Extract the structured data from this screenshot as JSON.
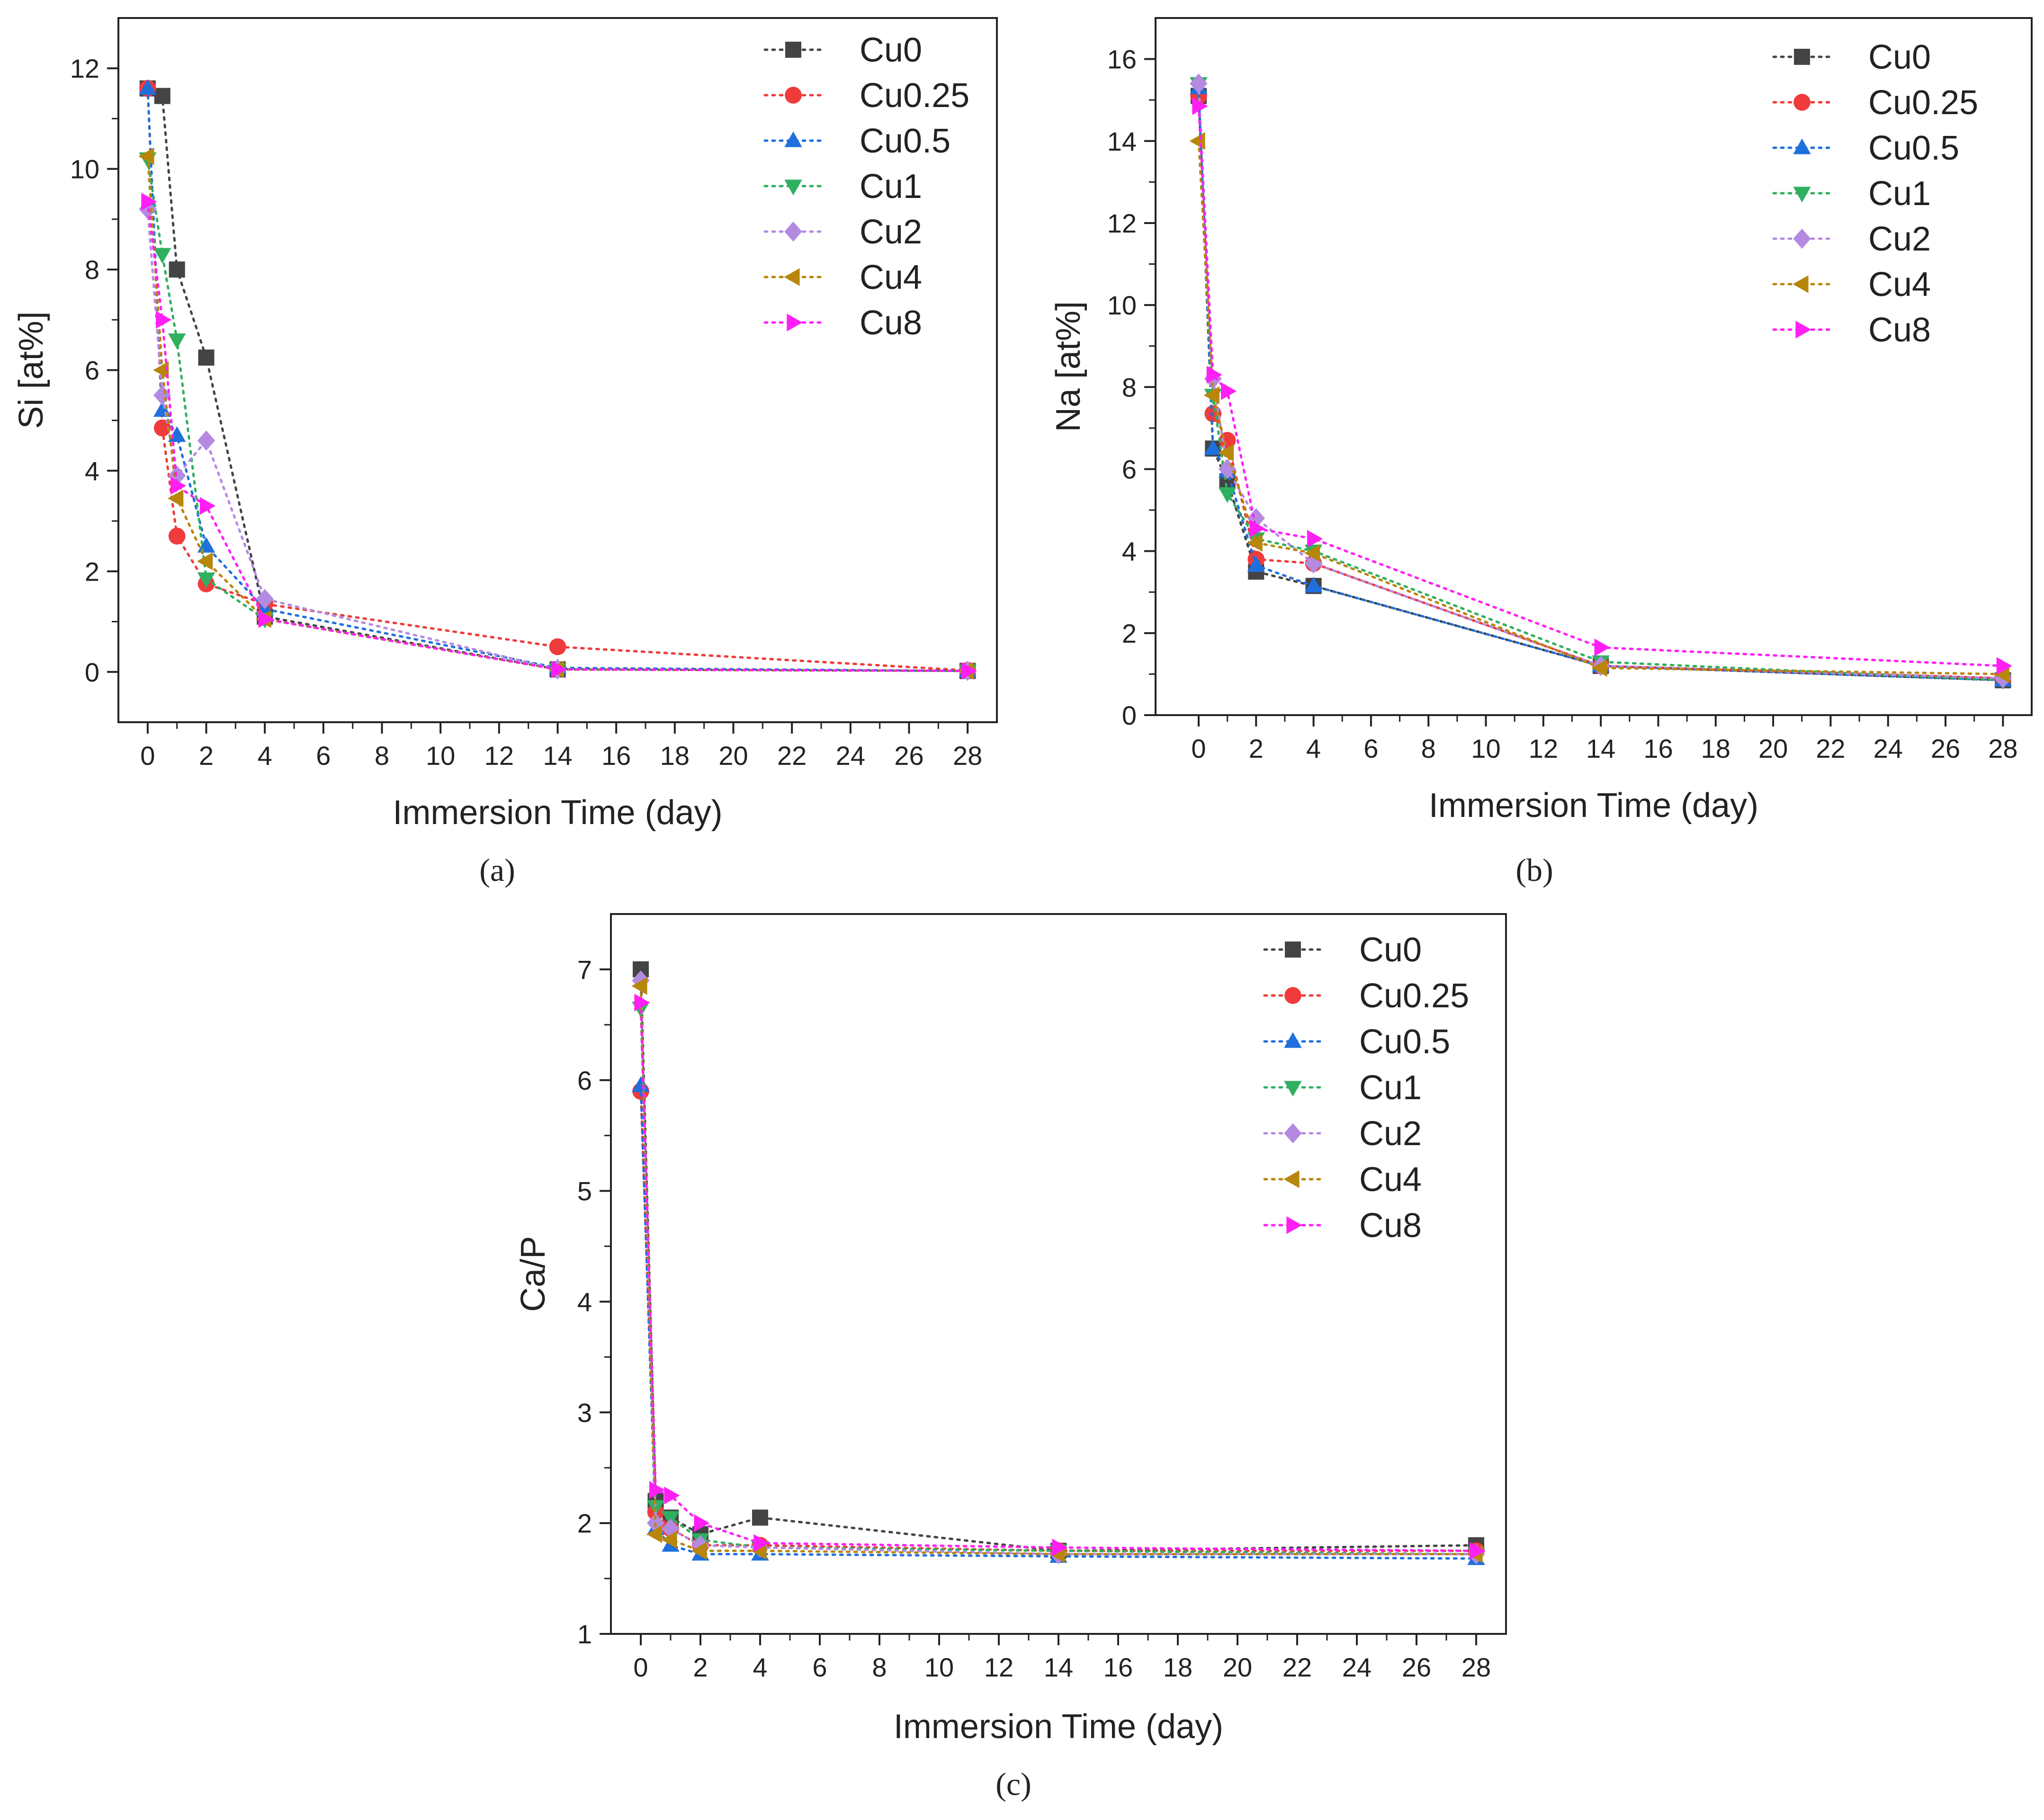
{
  "colors": {
    "Cu0": "#444444",
    "Cu0.25": "#ef3b3b",
    "Cu0.5": "#1f6fdc",
    "Cu1": "#2fb060",
    "Cu2": "#b48ae0",
    "Cu4": "#b8860b",
    "Cu8": "#ff1ff5"
  },
  "markers": {
    "Cu0": "square",
    "Cu0.25": "circle",
    "Cu0.5": "triangle-up",
    "Cu1": "triangle-down",
    "Cu2": "diamond",
    "Cu4": "triangle-left",
    "Cu8": "triangle-right"
  },
  "chart_data": [
    {
      "id": "a",
      "type": "line",
      "panel_label": "(a)",
      "xlabel": "Immersion Time (day)",
      "ylabel": "Si [at%]",
      "xlim": [
        -1,
        29
      ],
      "ylim": [
        -1,
        13
      ],
      "xticks": [
        0,
        2,
        4,
        6,
        8,
        10,
        12,
        14,
        16,
        18,
        20,
        22,
        24,
        26,
        28
      ],
      "yticks": [
        0,
        2,
        4,
        6,
        8,
        10,
        12
      ],
      "legend_position": "top-right",
      "x": [
        0,
        0.5,
        1,
        2,
        4,
        14,
        28
      ],
      "series": [
        {
          "name": "Cu0",
          "values": [
            11.6,
            11.45,
            8.0,
            6.25,
            1.1,
            0.05,
            0.02
          ]
        },
        {
          "name": "Cu0.25",
          "values": [
            11.6,
            4.85,
            2.7,
            1.75,
            1.35,
            0.5,
            0.03
          ]
        },
        {
          "name": "Cu0.5",
          "values": [
            11.6,
            5.2,
            4.7,
            2.5,
            1.25,
            0.08,
            0.02
          ]
        },
        {
          "name": "Cu1",
          "values": [
            10.2,
            8.3,
            6.6,
            1.85,
            1.05,
            0.05,
            0.02
          ]
        },
        {
          "name": "Cu2",
          "values": [
            9.2,
            5.5,
            3.9,
            4.6,
            1.45,
            0.05,
            0.02
          ]
        },
        {
          "name": "Cu4",
          "values": [
            10.25,
            6.0,
            3.45,
            2.2,
            1.05,
            0.05,
            0.02
          ]
        },
        {
          "name": "Cu8",
          "values": [
            9.35,
            7.0,
            3.7,
            3.3,
            1.05,
            0.05,
            0.02
          ]
        }
      ]
    },
    {
      "id": "b",
      "type": "line",
      "panel_label": "(b)",
      "xlabel": "Immersion Time (day)",
      "ylabel": "Na [at%]",
      "xlim": [
        -1.5,
        29
      ],
      "ylim": [
        0,
        17
      ],
      "xticks": [
        0,
        2,
        4,
        6,
        8,
        10,
        12,
        14,
        16,
        18,
        20,
        22,
        24,
        26,
        28
      ],
      "yticks": [
        0,
        2,
        4,
        6,
        8,
        10,
        12,
        14,
        16
      ],
      "legend_position": "top-right",
      "x": [
        0,
        0.5,
        1,
        2,
        4,
        14,
        28
      ],
      "series": [
        {
          "name": "Cu0",
          "values": [
            15.1,
            6.5,
            5.7,
            3.5,
            3.15,
            1.2,
            0.85
          ]
        },
        {
          "name": "Cu0.25",
          "values": [
            15.1,
            7.35,
            6.7,
            3.8,
            3.7,
            1.2,
            0.9
          ]
        },
        {
          "name": "Cu0.5",
          "values": [
            15.3,
            6.5,
            5.95,
            3.65,
            3.15,
            1.2,
            0.85
          ]
        },
        {
          "name": "Cu1",
          "values": [
            15.4,
            7.8,
            5.4,
            4.3,
            4.0,
            1.3,
            0.85
          ]
        },
        {
          "name": "Cu2",
          "values": [
            15.4,
            8.2,
            6.0,
            4.8,
            3.7,
            1.2,
            0.9
          ]
        },
        {
          "name": "Cu4",
          "values": [
            14.0,
            7.8,
            6.4,
            4.2,
            3.95,
            1.15,
            1.0
          ]
        },
        {
          "name": "Cu8",
          "values": [
            14.85,
            8.3,
            7.9,
            4.55,
            4.3,
            1.65,
            1.2
          ]
        }
      ]
    },
    {
      "id": "c",
      "type": "line",
      "panel_label": "(c)",
      "xlabel": "Immersion Time (day)",
      "ylabel": "Ca/P",
      "xlim": [
        -1,
        29
      ],
      "ylim": [
        1,
        7.5
      ],
      "xticks": [
        0,
        2,
        4,
        6,
        8,
        10,
        12,
        14,
        16,
        18,
        20,
        22,
        24,
        26,
        28
      ],
      "yticks": [
        1,
        2,
        3,
        4,
        5,
        6,
        7
      ],
      "legend_position": "top-right",
      "x": [
        0,
        0.5,
        1,
        2,
        4,
        14,
        28
      ],
      "series": [
        {
          "name": "Cu0",
          "values": [
            7.0,
            2.2,
            2.05,
            1.9,
            2.05,
            1.75,
            1.8
          ]
        },
        {
          "name": "Cu0.25",
          "values": [
            5.9,
            2.1,
            1.95,
            1.8,
            1.8,
            1.75,
            1.75
          ]
        },
        {
          "name": "Cu0.5",
          "values": [
            5.95,
            1.95,
            1.8,
            1.72,
            1.72,
            1.7,
            1.68
          ]
        },
        {
          "name": "Cu1",
          "values": [
            6.65,
            2.15,
            2.05,
            1.85,
            1.78,
            1.75,
            1.72
          ]
        },
        {
          "name": "Cu2",
          "values": [
            6.9,
            2.0,
            1.95,
            1.8,
            1.78,
            1.72,
            1.72
          ]
        },
        {
          "name": "Cu4",
          "values": [
            6.85,
            1.9,
            1.85,
            1.75,
            1.75,
            1.72,
            1.72
          ]
        },
        {
          "name": "Cu8",
          "values": [
            6.7,
            2.3,
            2.25,
            2.0,
            1.82,
            1.78,
            1.75
          ]
        }
      ]
    }
  ]
}
